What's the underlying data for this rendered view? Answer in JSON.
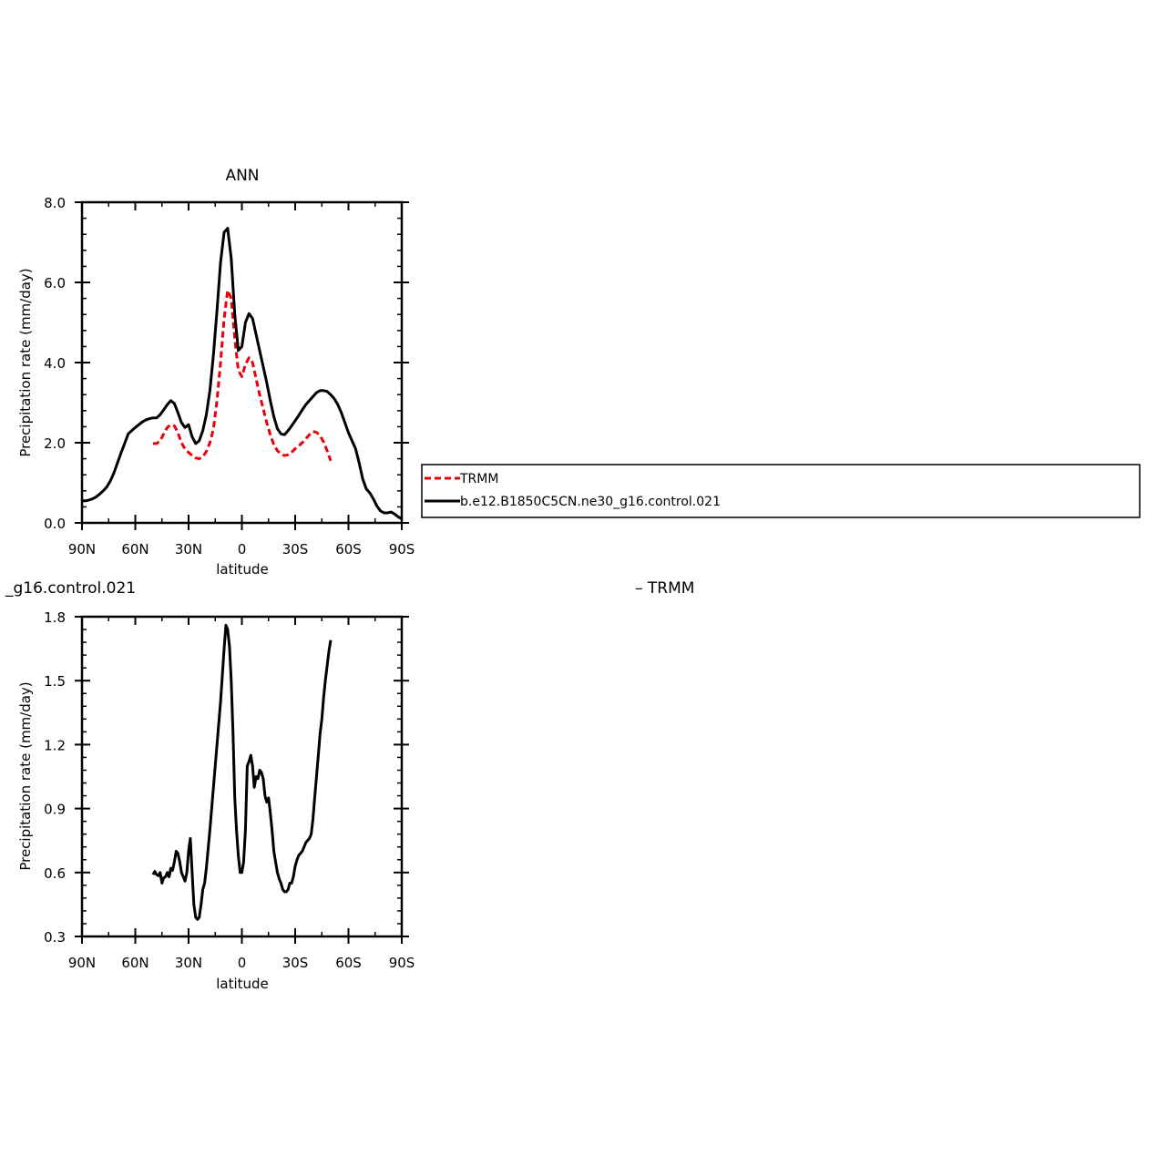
{
  "chart_data": [
    {
      "type": "line",
      "title": "ANN",
      "xlabel": "latitude",
      "ylabel": "Precipitation rate (mm/day)",
      "xlim": [
        90,
        -90
      ],
      "ylim": [
        0,
        8
      ],
      "x_ticks": [
        90,
        60,
        30,
        0,
        -30,
        -60,
        -90
      ],
      "x_tick_labels": [
        "90N",
        "60N",
        "30N",
        "0",
        "30S",
        "60S",
        "90S"
      ],
      "y_ticks": [
        0,
        2,
        4,
        6,
        8
      ],
      "y_tick_labels": [
        "0.0",
        "2.0",
        "4.0",
        "6.0",
        "8.0"
      ],
      "legend_position": "right",
      "series": [
        {
          "name": "TRMM",
          "color": "#e8000b",
          "style": "dashed",
          "points": [
            [
              50,
              1.98
            ],
            [
              48,
              1.98
            ],
            [
              46,
              2.05
            ],
            [
              44,
              2.22
            ],
            [
              42,
              2.38
            ],
            [
              40,
              2.45
            ],
            [
              38,
              2.42
            ],
            [
              36,
              2.25
            ],
            [
              34,
              2.0
            ],
            [
              32,
              1.84
            ],
            [
              30,
              1.76
            ],
            [
              28,
              1.68
            ],
            [
              26,
              1.62
            ],
            [
              24,
              1.6
            ],
            [
              22,
              1.65
            ],
            [
              20,
              1.78
            ],
            [
              18,
              2.0
            ],
            [
              16,
              2.35
            ],
            [
              14,
              3.05
            ],
            [
              12,
              4.0
            ],
            [
              10,
              5.1
            ],
            [
              8,
              5.8
            ],
            [
              6,
              5.6
            ],
            [
              4,
              4.6
            ],
            [
              2,
              3.8
            ],
            [
              0,
              3.65
            ],
            [
              -2,
              3.95
            ],
            [
              -4,
              4.12
            ],
            [
              -6,
              4.0
            ],
            [
              -8,
              3.6
            ],
            [
              -10,
              3.2
            ],
            [
              -12,
              2.85
            ],
            [
              -14,
              2.5
            ],
            [
              -16,
              2.2
            ],
            [
              -18,
              1.95
            ],
            [
              -20,
              1.8
            ],
            [
              -22,
              1.72
            ],
            [
              -24,
              1.68
            ],
            [
              -26,
              1.7
            ],
            [
              -28,
              1.76
            ],
            [
              -30,
              1.85
            ],
            [
              -32,
              1.92
            ],
            [
              -34,
              2.0
            ],
            [
              -36,
              2.1
            ],
            [
              -38,
              2.2
            ],
            [
              -40,
              2.28
            ],
            [
              -42,
              2.26
            ],
            [
              -44,
              2.18
            ],
            [
              -46,
              2.02
            ],
            [
              -48,
              1.8
            ],
            [
              -50,
              1.55
            ]
          ]
        },
        {
          "name": "b.e12.B1850C5CN.ne30_g16.control.021",
          "color": "#000000",
          "style": "solid",
          "points": [
            [
              90,
              0.55
            ],
            [
              88,
              0.55
            ],
            [
              86,
              0.57
            ],
            [
              84,
              0.6
            ],
            [
              82,
              0.65
            ],
            [
              80,
              0.72
            ],
            [
              78,
              0.8
            ],
            [
              76,
              0.9
            ],
            [
              74,
              1.05
            ],
            [
              72,
              1.25
            ],
            [
              70,
              1.5
            ],
            [
              68,
              1.75
            ],
            [
              66,
              1.98
            ],
            [
              64,
              2.22
            ],
            [
              62,
              2.3
            ],
            [
              60,
              2.38
            ],
            [
              58,
              2.45
            ],
            [
              56,
              2.52
            ],
            [
              54,
              2.57
            ],
            [
              52,
              2.6
            ],
            [
              50,
              2.62
            ],
            [
              48,
              2.62
            ],
            [
              46,
              2.7
            ],
            [
              44,
              2.82
            ],
            [
              42,
              2.95
            ],
            [
              40,
              3.05
            ],
            [
              38,
              2.98
            ],
            [
              36,
              2.75
            ],
            [
              34,
              2.5
            ],
            [
              32,
              2.38
            ],
            [
              30,
              2.45
            ],
            [
              28,
              2.15
            ],
            [
              26,
              1.98
            ],
            [
              24,
              2.05
            ],
            [
              22,
              2.3
            ],
            [
              20,
              2.7
            ],
            [
              18,
              3.3
            ],
            [
              16,
              4.2
            ],
            [
              14,
              5.3
            ],
            [
              12,
              6.5
            ],
            [
              10,
              7.25
            ],
            [
              8,
              7.35
            ],
            [
              6,
              6.6
            ],
            [
              4,
              5.2
            ],
            [
              2,
              4.3
            ],
            [
              0,
              4.4
            ],
            [
              -2,
              5.0
            ],
            [
              -4,
              5.22
            ],
            [
              -6,
              5.1
            ],
            [
              -8,
              4.7
            ],
            [
              -10,
              4.3
            ],
            [
              -12,
              3.9
            ],
            [
              -14,
              3.5
            ],
            [
              -16,
              3.05
            ],
            [
              -18,
              2.65
            ],
            [
              -20,
              2.35
            ],
            [
              -22,
              2.22
            ],
            [
              -24,
              2.2
            ],
            [
              -26,
              2.3
            ],
            [
              -28,
              2.42
            ],
            [
              -30,
              2.55
            ],
            [
              -32,
              2.68
            ],
            [
              -34,
              2.82
            ],
            [
              -36,
              2.95
            ],
            [
              -38,
              3.05
            ],
            [
              -40,
              3.15
            ],
            [
              -42,
              3.25
            ],
            [
              -44,
              3.3
            ],
            [
              -46,
              3.3
            ],
            [
              -48,
              3.28
            ],
            [
              -50,
              3.2
            ],
            [
              -52,
              3.1
            ],
            [
              -54,
              2.95
            ],
            [
              -56,
              2.75
            ],
            [
              -58,
              2.5
            ],
            [
              -60,
              2.25
            ],
            [
              -62,
              2.05
            ],
            [
              -64,
              1.85
            ],
            [
              -66,
              1.5
            ],
            [
              -68,
              1.1
            ],
            [
              -70,
              0.85
            ],
            [
              -72,
              0.75
            ],
            [
              -74,
              0.6
            ],
            [
              -76,
              0.42
            ],
            [
              -78,
              0.3
            ],
            [
              -80,
              0.25
            ],
            [
              -82,
              0.25
            ],
            [
              -84,
              0.27
            ],
            [
              -86,
              0.22
            ],
            [
              -88,
              0.15
            ],
            [
              -90,
              0.1
            ]
          ]
        }
      ]
    },
    {
      "type": "line",
      "title": "",
      "left_label": "_g16.control.021",
      "right_label": "– TRMM",
      "xlabel": "latitude",
      "ylabel": "Precipitation rate (mm/day)",
      "xlim": [
        90,
        -90
      ],
      "ylim": [
        0.3,
        1.8
      ],
      "x_ticks": [
        90,
        60,
        30,
        0,
        -30,
        -60,
        -90
      ],
      "x_tick_labels": [
        "90N",
        "60N",
        "30N",
        "0",
        "30S",
        "60S",
        "90S"
      ],
      "y_ticks": [
        0.3,
        0.6,
        0.9,
        1.2,
        1.5,
        1.8
      ],
      "y_tick_labels": [
        "0.3",
        "0.6",
        "0.9",
        "1.2",
        "1.5",
        "1.8"
      ],
      "series": [
        {
          "name": "",
          "color": "#000000",
          "style": "solid",
          "points": [
            [
              50,
              0.59
            ],
            [
              49,
              0.605
            ],
            [
              48,
              0.59
            ],
            [
              47,
              0.585
            ],
            [
              46,
              0.6
            ],
            [
              45,
              0.55
            ],
            [
              44,
              0.575
            ],
            [
              43,
              0.58
            ],
            [
              42,
              0.6
            ],
            [
              41,
              0.58
            ],
            [
              40,
              0.62
            ],
            [
              39,
              0.61
            ],
            [
              38,
              0.65
            ],
            [
              37,
              0.7
            ],
            [
              36,
              0.69
            ],
            [
              35,
              0.65
            ],
            [
              34,
              0.6
            ],
            [
              32,
              0.56
            ],
            [
              31,
              0.6
            ],
            [
              30,
              0.7
            ],
            [
              29,
              0.76
            ],
            [
              28,
              0.6
            ],
            [
              27,
              0.45
            ],
            [
              26,
              0.39
            ],
            [
              25,
              0.38
            ],
            [
              24,
              0.39
            ],
            [
              23,
              0.45
            ],
            [
              22,
              0.52
            ],
            [
              21,
              0.55
            ],
            [
              20,
              0.62
            ],
            [
              18,
              0.8
            ],
            [
              16,
              1.0
            ],
            [
              14,
              1.2
            ],
            [
              12,
              1.4
            ],
            [
              10,
              1.65
            ],
            [
              9,
              1.76
            ],
            [
              8,
              1.74
            ],
            [
              7,
              1.66
            ],
            [
              6,
              1.5
            ],
            [
              5,
              1.25
            ],
            [
              4,
              0.95
            ],
            [
              3,
              0.8
            ],
            [
              2,
              0.68
            ],
            [
              1,
              0.6
            ],
            [
              0,
              0.6
            ],
            [
              -1,
              0.65
            ],
            [
              -2,
              0.8
            ],
            [
              -3,
              1.1
            ],
            [
              -4,
              1.12
            ],
            [
              -5,
              1.15
            ],
            [
              -6,
              1.1
            ],
            [
              -7,
              1.0
            ],
            [
              -8,
              1.05
            ],
            [
              -9,
              1.04
            ],
            [
              -10,
              1.08
            ],
            [
              -11,
              1.07
            ],
            [
              -12,
              1.04
            ],
            [
              -13,
              0.96
            ],
            [
              -14,
              0.93
            ],
            [
              -15,
              0.95
            ],
            [
              -16,
              0.88
            ],
            [
              -17,
              0.8
            ],
            [
              -18,
              0.7
            ],
            [
              -19,
              0.65
            ],
            [
              -20,
              0.6
            ],
            [
              -21,
              0.57
            ],
            [
              -22,
              0.55
            ],
            [
              -23,
              0.52
            ],
            [
              -24,
              0.51
            ],
            [
              -25,
              0.51
            ],
            [
              -26,
              0.52
            ],
            [
              -27,
              0.55
            ],
            [
              -28,
              0.55
            ],
            [
              -29,
              0.58
            ],
            [
              -30,
              0.63
            ],
            [
              -31,
              0.66
            ],
            [
              -32,
              0.68
            ],
            [
              -33,
              0.69
            ],
            [
              -34,
              0.7
            ],
            [
              -35,
              0.72
            ],
            [
              -36,
              0.74
            ],
            [
              -37,
              0.75
            ],
            [
              -38,
              0.76
            ],
            [
              -39,
              0.78
            ],
            [
              -40,
              0.85
            ],
            [
              -41,
              0.95
            ],
            [
              -42,
              1.05
            ],
            [
              -43,
              1.15
            ],
            [
              -44,
              1.25
            ],
            [
              -45,
              1.32
            ],
            [
              -46,
              1.42
            ],
            [
              -47,
              1.5
            ],
            [
              -48,
              1.57
            ],
            [
              -49,
              1.64
            ],
            [
              -50,
              1.69
            ]
          ]
        }
      ]
    }
  ]
}
